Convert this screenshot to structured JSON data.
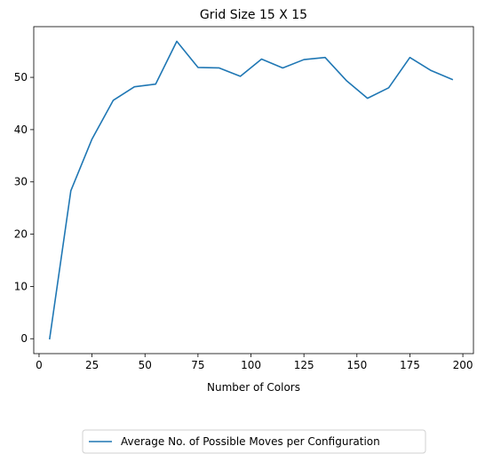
{
  "chart_data": {
    "type": "line",
    "title": "Grid Size 15 X 15",
    "xlabel": "Number of Colors",
    "ylabel": "",
    "xlim": [
      -2.5,
      205
    ],
    "ylim": [
      -2.85,
      59.7
    ],
    "x_ticks": [
      0,
      25,
      50,
      75,
      100,
      125,
      150,
      175,
      200
    ],
    "y_ticks": [
      0,
      10,
      20,
      30,
      40,
      50
    ],
    "grid": false,
    "legend_position": "bottom-center-outside",
    "series": [
      {
        "name": "Average No. of Possible Moves per Configuration",
        "color": "#1f77b4",
        "x": [
          5,
          15,
          25,
          35,
          45,
          55,
          65,
          75,
          85,
          95,
          105,
          115,
          125,
          135,
          145,
          155,
          165,
          175,
          185,
          195
        ],
        "values": [
          0.0,
          28.3,
          38.2,
          45.6,
          48.2,
          48.7,
          56.9,
          51.9,
          51.8,
          50.2,
          53.5,
          51.8,
          53.4,
          53.8,
          49.4,
          46.0,
          48.0,
          53.8,
          51.3,
          49.6
        ]
      }
    ]
  }
}
